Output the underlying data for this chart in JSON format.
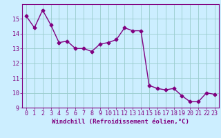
{
  "x": [
    0,
    1,
    2,
    3,
    4,
    5,
    6,
    7,
    8,
    9,
    10,
    11,
    12,
    13,
    14,
    15,
    16,
    17,
    18,
    19,
    20,
    21,
    22,
    23
  ],
  "y": [
    15.2,
    14.4,
    15.6,
    14.6,
    13.4,
    13.5,
    13.0,
    13.0,
    12.8,
    13.3,
    13.4,
    13.6,
    14.4,
    14.2,
    14.2,
    10.5,
    10.3,
    10.2,
    10.3,
    9.8,
    9.4,
    9.4,
    10.0,
    9.9
  ],
  "line_color": "#800080",
  "bg_color": "#cceeff",
  "grid_color": "#99cccc",
  "xlabel": "Windchill (Refroidissement éolien,°C)",
  "ylim": [
    9,
    16
  ],
  "xlim": [
    -0.5,
    23.5
  ],
  "yticks": [
    9,
    10,
    11,
    12,
    13,
    14,
    15
  ],
  "xticks": [
    0,
    1,
    2,
    3,
    4,
    5,
    6,
    7,
    8,
    9,
    10,
    11,
    12,
    13,
    14,
    15,
    16,
    17,
    18,
    19,
    20,
    21,
    22,
    23
  ],
  "marker": "D",
  "marker_size": 2.5,
  "line_width": 1.0,
  "xlabel_fontsize": 6.5,
  "tick_fontsize": 6.0,
  "tick_color": "#800080",
  "axis_color": "#800080"
}
